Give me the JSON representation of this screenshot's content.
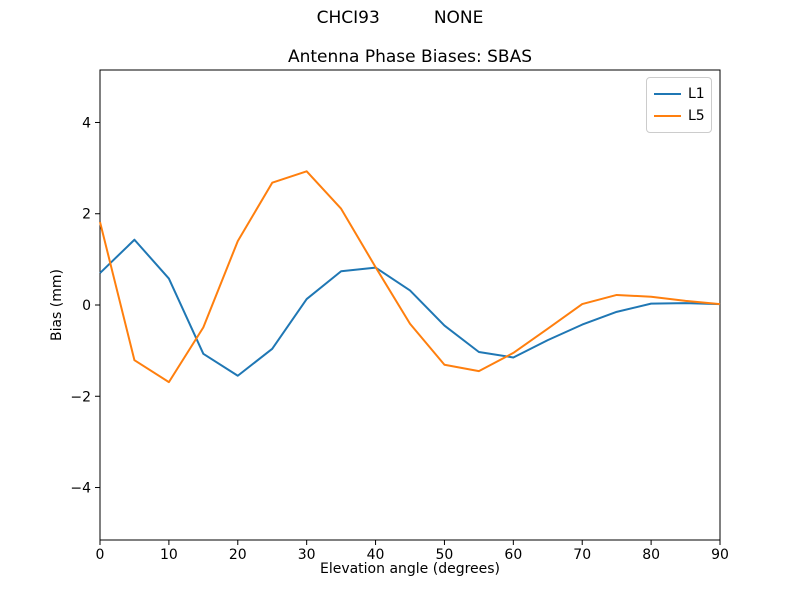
{
  "figure": {
    "suptitle": "CHCI93          NONE",
    "background": "#ffffff",
    "spine_color": "#000000"
  },
  "chart_data": {
    "type": "line",
    "title": "Antenna Phase Biases: SBAS",
    "xlabel": "Elevation angle (degrees)",
    "ylabel": "Bias (mm)",
    "x": [
      0,
      5,
      10,
      15,
      20,
      25,
      30,
      35,
      40,
      45,
      50,
      55,
      60,
      65,
      70,
      75,
      80,
      85,
      90
    ],
    "series": [
      {
        "name": "L1",
        "color": "#1f77b4",
        "values": [
          0.7,
          1.43,
          0.58,
          -1.07,
          -1.55,
          -0.96,
          0.13,
          0.74,
          0.82,
          0.32,
          -0.45,
          -1.03,
          -1.15,
          -0.77,
          -0.43,
          -0.15,
          0.03,
          0.04,
          0.02
        ]
      },
      {
        "name": "L5",
        "color": "#ff7f0e",
        "values": [
          1.82,
          -1.21,
          -1.69,
          -0.49,
          1.4,
          2.68,
          2.93,
          2.11,
          0.83,
          -0.41,
          -1.31,
          -1.45,
          -1.05,
          -0.52,
          0.02,
          0.22,
          0.18,
          0.09,
          0.02
        ]
      }
    ],
    "xlim": [
      0,
      90
    ],
    "ylim": [
      -5.15,
      5.15
    ],
    "xticks": [
      0,
      10,
      20,
      30,
      40,
      50,
      60,
      70,
      80,
      90
    ],
    "yticks": [
      -4,
      -2,
      0,
      2,
      4
    ],
    "grid": false,
    "legend_position": "upper right"
  }
}
